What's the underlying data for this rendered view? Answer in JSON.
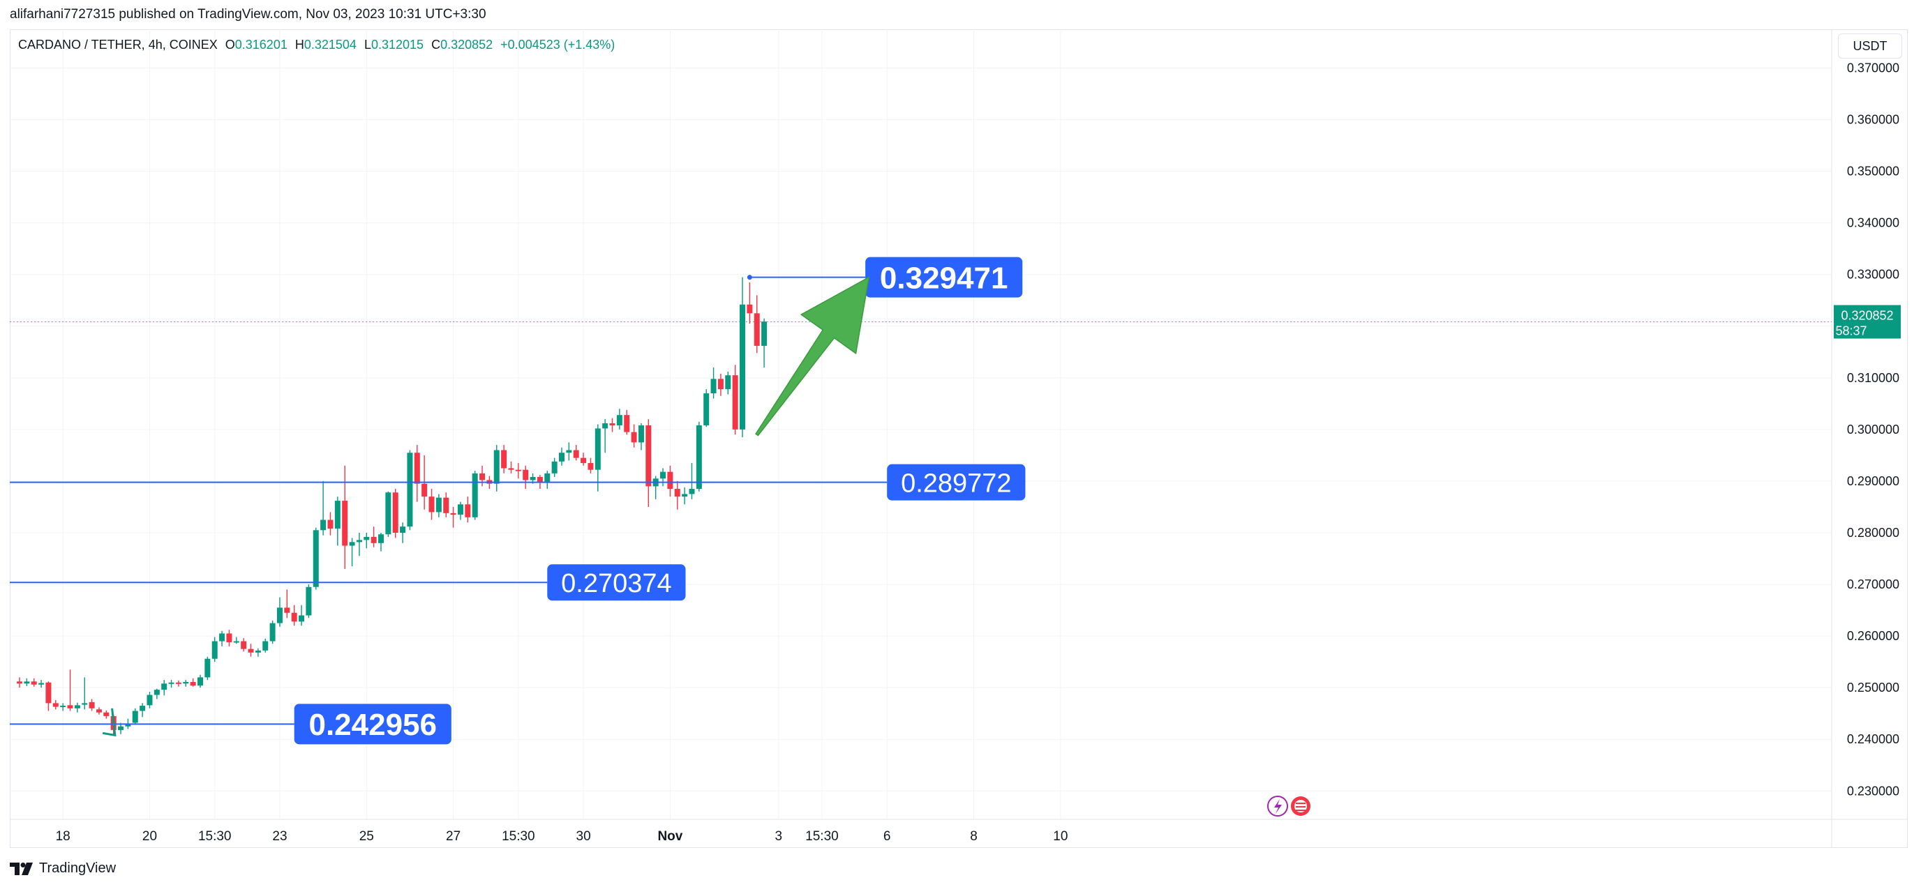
{
  "header": {
    "published": "alifarhani7727315 published on TradingView.com, Nov 03, 2023 10:31 UTC+3:30"
  },
  "legend": {
    "symbol": "CARDANO / TETHER, 4h, COINEX",
    "o_label": "O",
    "o_value": "0.316201",
    "h_label": "H",
    "h_value": "0.321504",
    "l_label": "L",
    "l_value": "0.312015",
    "c_label": "C",
    "c_value": "0.320852",
    "change": "+0.004523 (+1.43%)"
  },
  "currency": "USDT",
  "footer": {
    "brand": "TradingView"
  },
  "colors": {
    "up": "#089981",
    "down": "#f23645",
    "line": "#2962ff",
    "label_bg": "#2962ff",
    "arrow": "#4caf50"
  },
  "chart_data": {
    "type": "candlestick",
    "y_ticks": [
      "0.370000",
      "0.360000",
      "0.350000",
      "0.340000",
      "0.330000",
      "0.320000",
      "0.310000",
      "0.300000",
      "0.290000",
      "0.280000",
      "0.270000",
      "0.260000",
      "0.250000",
      "0.240000",
      "0.230000"
    ],
    "ylim": [
      0.2245,
      0.3775
    ],
    "x_ticks": [
      "18",
      "20",
      "15:30",
      "23",
      "25",
      "27",
      "15:30",
      "30",
      "Nov",
      "3",
      "15:30",
      "6",
      "8",
      "10"
    ],
    "x_tick_index": [
      6,
      18,
      27,
      36,
      48,
      60,
      69,
      78,
      90,
      105,
      111,
      120,
      132,
      144
    ],
    "current_price": {
      "value": 0.320852,
      "label": "0.320852",
      "countdown": "58:37"
    },
    "levels": [
      {
        "value": 0.242956,
        "label": "0.242956",
        "from_index": 0,
        "to_index": 38
      },
      {
        "value": 0.270374,
        "label": "0.270374",
        "from_index": 0,
        "to_index": 73
      },
      {
        "value": 0.289772,
        "label": "0.289772",
        "from_index": 0,
        "to_index": 120
      },
      {
        "value": 0.329471,
        "label": "0.329471",
        "from_index": 101,
        "to_index": 117
      }
    ],
    "annotations": {
      "arrow": {
        "from_index": 102,
        "from_value": 0.299,
        "to_index": 117.5,
        "to_value": 0.3295
      }
    },
    "candles": [
      {
        "o": 0.2512,
        "h": 0.252,
        "l": 0.25,
        "c": 0.2508
      },
      {
        "o": 0.2508,
        "h": 0.2518,
        "l": 0.2503,
        "c": 0.2512
      },
      {
        "o": 0.2512,
        "h": 0.2518,
        "l": 0.2502,
        "c": 0.2506
      },
      {
        "o": 0.2506,
        "h": 0.2515,
        "l": 0.25,
        "c": 0.2509
      },
      {
        "o": 0.251,
        "h": 0.2512,
        "l": 0.2455,
        "c": 0.247
      },
      {
        "o": 0.247,
        "h": 0.2476,
        "l": 0.2458,
        "c": 0.2463
      },
      {
        "o": 0.2463,
        "h": 0.247,
        "l": 0.2455,
        "c": 0.2465
      },
      {
        "o": 0.2466,
        "h": 0.2535,
        "l": 0.2455,
        "c": 0.246
      },
      {
        "o": 0.246,
        "h": 0.2471,
        "l": 0.2452,
        "c": 0.2466
      },
      {
        "o": 0.2467,
        "h": 0.252,
        "l": 0.2458,
        "c": 0.247
      },
      {
        "o": 0.2472,
        "h": 0.2478,
        "l": 0.2455,
        "c": 0.246
      },
      {
        "o": 0.2458,
        "h": 0.2462,
        "l": 0.2448,
        "c": 0.2452
      },
      {
        "o": 0.2452,
        "h": 0.2456,
        "l": 0.244,
        "c": 0.2445
      },
      {
        "o": 0.2445,
        "h": 0.2448,
        "l": 0.2408,
        "c": 0.2418
      },
      {
        "o": 0.2418,
        "h": 0.2432,
        "l": 0.241,
        "c": 0.2425
      },
      {
        "o": 0.2425,
        "h": 0.244,
        "l": 0.242,
        "c": 0.243
      },
      {
        "o": 0.2432,
        "h": 0.246,
        "l": 0.2428,
        "c": 0.2455
      },
      {
        "o": 0.2455,
        "h": 0.247,
        "l": 0.2443,
        "c": 0.2465
      },
      {
        "o": 0.2466,
        "h": 0.2492,
        "l": 0.246,
        "c": 0.2486
      },
      {
        "o": 0.2486,
        "h": 0.2498,
        "l": 0.2478,
        "c": 0.2496
      },
      {
        "o": 0.2496,
        "h": 0.2515,
        "l": 0.2485,
        "c": 0.2508
      },
      {
        "o": 0.2508,
        "h": 0.2515,
        "l": 0.25,
        "c": 0.251
      },
      {
        "o": 0.251,
        "h": 0.2514,
        "l": 0.2502,
        "c": 0.2508
      },
      {
        "o": 0.2508,
        "h": 0.2515,
        "l": 0.2502,
        "c": 0.2511
      },
      {
        "o": 0.2511,
        "h": 0.2518,
        "l": 0.2502,
        "c": 0.2504
      },
      {
        "o": 0.2504,
        "h": 0.2525,
        "l": 0.25,
        "c": 0.252
      },
      {
        "o": 0.252,
        "h": 0.256,
        "l": 0.2515,
        "c": 0.2556
      },
      {
        "o": 0.2556,
        "h": 0.2598,
        "l": 0.255,
        "c": 0.259
      },
      {
        "o": 0.259,
        "h": 0.261,
        "l": 0.258,
        "c": 0.2605
      },
      {
        "o": 0.2605,
        "h": 0.2612,
        "l": 0.258,
        "c": 0.2588
      },
      {
        "o": 0.2588,
        "h": 0.2598,
        "l": 0.2585,
        "c": 0.259
      },
      {
        "o": 0.259,
        "h": 0.2596,
        "l": 0.257,
        "c": 0.2575
      },
      {
        "o": 0.2575,
        "h": 0.2585,
        "l": 0.256,
        "c": 0.2568
      },
      {
        "o": 0.2568,
        "h": 0.2576,
        "l": 0.256,
        "c": 0.2572
      },
      {
        "o": 0.2572,
        "h": 0.2595,
        "l": 0.2568,
        "c": 0.259
      },
      {
        "o": 0.259,
        "h": 0.263,
        "l": 0.2585,
        "c": 0.2625
      },
      {
        "o": 0.2625,
        "h": 0.2675,
        "l": 0.2618,
        "c": 0.2655
      },
      {
        "o": 0.2655,
        "h": 0.269,
        "l": 0.2635,
        "c": 0.2645
      },
      {
        "o": 0.2645,
        "h": 0.266,
        "l": 0.262,
        "c": 0.2628
      },
      {
        "o": 0.2628,
        "h": 0.266,
        "l": 0.262,
        "c": 0.264
      },
      {
        "o": 0.264,
        "h": 0.27,
        "l": 0.2635,
        "c": 0.2695
      },
      {
        "o": 0.2695,
        "h": 0.281,
        "l": 0.269,
        "c": 0.2805
      },
      {
        "o": 0.2805,
        "h": 0.29,
        "l": 0.2795,
        "c": 0.2825
      },
      {
        "o": 0.2825,
        "h": 0.284,
        "l": 0.2795,
        "c": 0.2808
      },
      {
        "o": 0.2808,
        "h": 0.287,
        "l": 0.2775,
        "c": 0.2862
      },
      {
        "o": 0.2862,
        "h": 0.293,
        "l": 0.273,
        "c": 0.2775
      },
      {
        "o": 0.2775,
        "h": 0.279,
        "l": 0.2735,
        "c": 0.2782
      },
      {
        "o": 0.2782,
        "h": 0.28,
        "l": 0.2755,
        "c": 0.2786
      },
      {
        "o": 0.2786,
        "h": 0.28,
        "l": 0.277,
        "c": 0.2792
      },
      {
        "o": 0.2792,
        "h": 0.2812,
        "l": 0.2772,
        "c": 0.278
      },
      {
        "o": 0.278,
        "h": 0.28,
        "l": 0.2764,
        "c": 0.2797
      },
      {
        "o": 0.2797,
        "h": 0.288,
        "l": 0.2792,
        "c": 0.2878
      },
      {
        "o": 0.2878,
        "h": 0.2885,
        "l": 0.279,
        "c": 0.28
      },
      {
        "o": 0.28,
        "h": 0.282,
        "l": 0.278,
        "c": 0.2812
      },
      {
        "o": 0.2812,
        "h": 0.296,
        "l": 0.2805,
        "c": 0.2955
      },
      {
        "o": 0.2955,
        "h": 0.297,
        "l": 0.286,
        "c": 0.2895
      },
      {
        "o": 0.2895,
        "h": 0.295,
        "l": 0.2845,
        "c": 0.287
      },
      {
        "o": 0.287,
        "h": 0.2885,
        "l": 0.2825,
        "c": 0.284
      },
      {
        "o": 0.284,
        "h": 0.2875,
        "l": 0.283,
        "c": 0.2868
      },
      {
        "o": 0.2868,
        "h": 0.2878,
        "l": 0.283,
        "c": 0.2838
      },
      {
        "o": 0.2838,
        "h": 0.285,
        "l": 0.281,
        "c": 0.2835
      },
      {
        "o": 0.2835,
        "h": 0.286,
        "l": 0.2825,
        "c": 0.2855
      },
      {
        "o": 0.2855,
        "h": 0.287,
        "l": 0.282,
        "c": 0.283
      },
      {
        "o": 0.283,
        "h": 0.292,
        "l": 0.2825,
        "c": 0.2915
      },
      {
        "o": 0.2915,
        "h": 0.293,
        "l": 0.289,
        "c": 0.2902
      },
      {
        "o": 0.2902,
        "h": 0.291,
        "l": 0.2885,
        "c": 0.2895
      },
      {
        "o": 0.2895,
        "h": 0.297,
        "l": 0.288,
        "c": 0.296
      },
      {
        "o": 0.296,
        "h": 0.297,
        "l": 0.2915,
        "c": 0.2925
      },
      {
        "o": 0.2925,
        "h": 0.2938,
        "l": 0.2915,
        "c": 0.2922
      },
      {
        "o": 0.2922,
        "h": 0.2935,
        "l": 0.2905,
        "c": 0.292
      },
      {
        "o": 0.2922,
        "h": 0.293,
        "l": 0.2885,
        "c": 0.2902
      },
      {
        "o": 0.2902,
        "h": 0.2915,
        "l": 0.2895,
        "c": 0.2908
      },
      {
        "o": 0.2908,
        "h": 0.2912,
        "l": 0.2885,
        "c": 0.2898
      },
      {
        "o": 0.2898,
        "h": 0.292,
        "l": 0.2885,
        "c": 0.2915
      },
      {
        "o": 0.2915,
        "h": 0.2945,
        "l": 0.2908,
        "c": 0.2938
      },
      {
        "o": 0.2938,
        "h": 0.2965,
        "l": 0.293,
        "c": 0.2955
      },
      {
        "o": 0.2955,
        "h": 0.2975,
        "l": 0.294,
        "c": 0.296
      },
      {
        "o": 0.296,
        "h": 0.297,
        "l": 0.294,
        "c": 0.2945
      },
      {
        "o": 0.2945,
        "h": 0.2955,
        "l": 0.293,
        "c": 0.2935
      },
      {
        "o": 0.2935,
        "h": 0.2945,
        "l": 0.2915,
        "c": 0.2922
      },
      {
        "o": 0.2922,
        "h": 0.301,
        "l": 0.288,
        "c": 0.3002
      },
      {
        "o": 0.3002,
        "h": 0.302,
        "l": 0.2955,
        "c": 0.3012
      },
      {
        "o": 0.3012,
        "h": 0.3022,
        "l": 0.2995,
        "c": 0.3008
      },
      {
        "o": 0.3008,
        "h": 0.304,
        "l": 0.3,
        "c": 0.3028
      },
      {
        "o": 0.3028,
        "h": 0.3038,
        "l": 0.299,
        "c": 0.2995
      },
      {
        "o": 0.2995,
        "h": 0.301,
        "l": 0.2965,
        "c": 0.2975
      },
      {
        "o": 0.2975,
        "h": 0.3012,
        "l": 0.296,
        "c": 0.3008
      },
      {
        "o": 0.3008,
        "h": 0.302,
        "l": 0.285,
        "c": 0.289
      },
      {
        "o": 0.289,
        "h": 0.291,
        "l": 0.2865,
        "c": 0.2905
      },
      {
        "o": 0.2905,
        "h": 0.2925,
        "l": 0.289,
        "c": 0.2918
      },
      {
        "o": 0.2918,
        "h": 0.293,
        "l": 0.287,
        "c": 0.2885
      },
      {
        "o": 0.2885,
        "h": 0.29,
        "l": 0.2845,
        "c": 0.287
      },
      {
        "o": 0.287,
        "h": 0.2888,
        "l": 0.2855,
        "c": 0.2875
      },
      {
        "o": 0.2875,
        "h": 0.2935,
        "l": 0.2865,
        "c": 0.2885
      },
      {
        "o": 0.2885,
        "h": 0.3015,
        "l": 0.288,
        "c": 0.3008
      },
      {
        "o": 0.3008,
        "h": 0.3078,
        "l": 0.3005,
        "c": 0.307
      },
      {
        "o": 0.307,
        "h": 0.312,
        "l": 0.306,
        "c": 0.3098
      },
      {
        "o": 0.3098,
        "h": 0.3108,
        "l": 0.3065,
        "c": 0.3078
      },
      {
        "o": 0.3078,
        "h": 0.3112,
        "l": 0.3068,
        "c": 0.3105
      },
      {
        "o": 0.3105,
        "h": 0.3125,
        "l": 0.299,
        "c": 0.3
      },
      {
        "o": 0.3,
        "h": 0.3295,
        "l": 0.2985,
        "c": 0.3242
      },
      {
        "o": 0.3242,
        "h": 0.3285,
        "l": 0.3205,
        "c": 0.3225
      },
      {
        "o": 0.3225,
        "h": 0.326,
        "l": 0.3148,
        "c": 0.3162
      },
      {
        "o": 0.3162,
        "h": 0.3215,
        "l": 0.312,
        "c": 0.3209
      }
    ]
  }
}
